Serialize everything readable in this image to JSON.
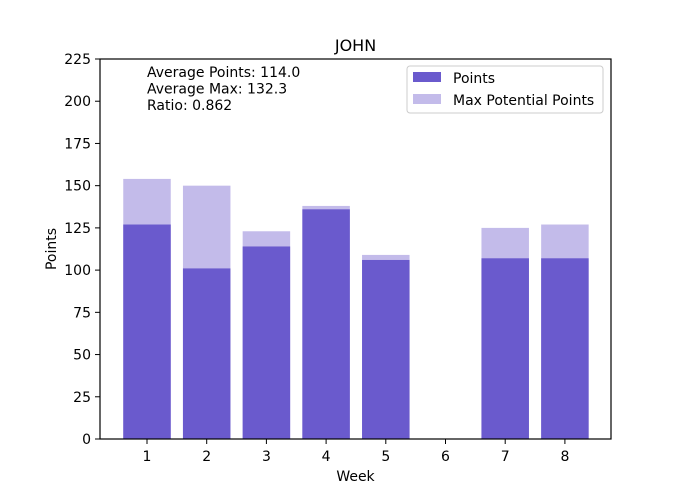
{
  "chart_data": {
    "type": "bar",
    "title": "JOHN",
    "xlabel": "Week",
    "ylabel": "Points",
    "ylim": [
      0,
      225
    ],
    "yticks": [
      "0",
      "25",
      "50",
      "75",
      "100",
      "125",
      "150",
      "175",
      "200",
      "225"
    ],
    "categories": [
      "1",
      "2",
      "3",
      "4",
      "5",
      "6",
      "7",
      "8"
    ],
    "series": [
      {
        "name": "Points",
        "values": [
          127,
          101,
          114,
          136,
          106,
          0,
          107,
          107
        ],
        "color": "#6a5acd"
      },
      {
        "name": "Max Potential Points",
        "values": [
          154,
          150,
          123,
          138,
          109,
          0,
          125,
          127
        ],
        "color": "#c3bbea"
      }
    ],
    "annotations": [
      "Average Points: 114.0",
      "Average Max: 132.3",
      "Ratio: 0.862"
    ],
    "legend_position": "top-right",
    "grid": false
  }
}
